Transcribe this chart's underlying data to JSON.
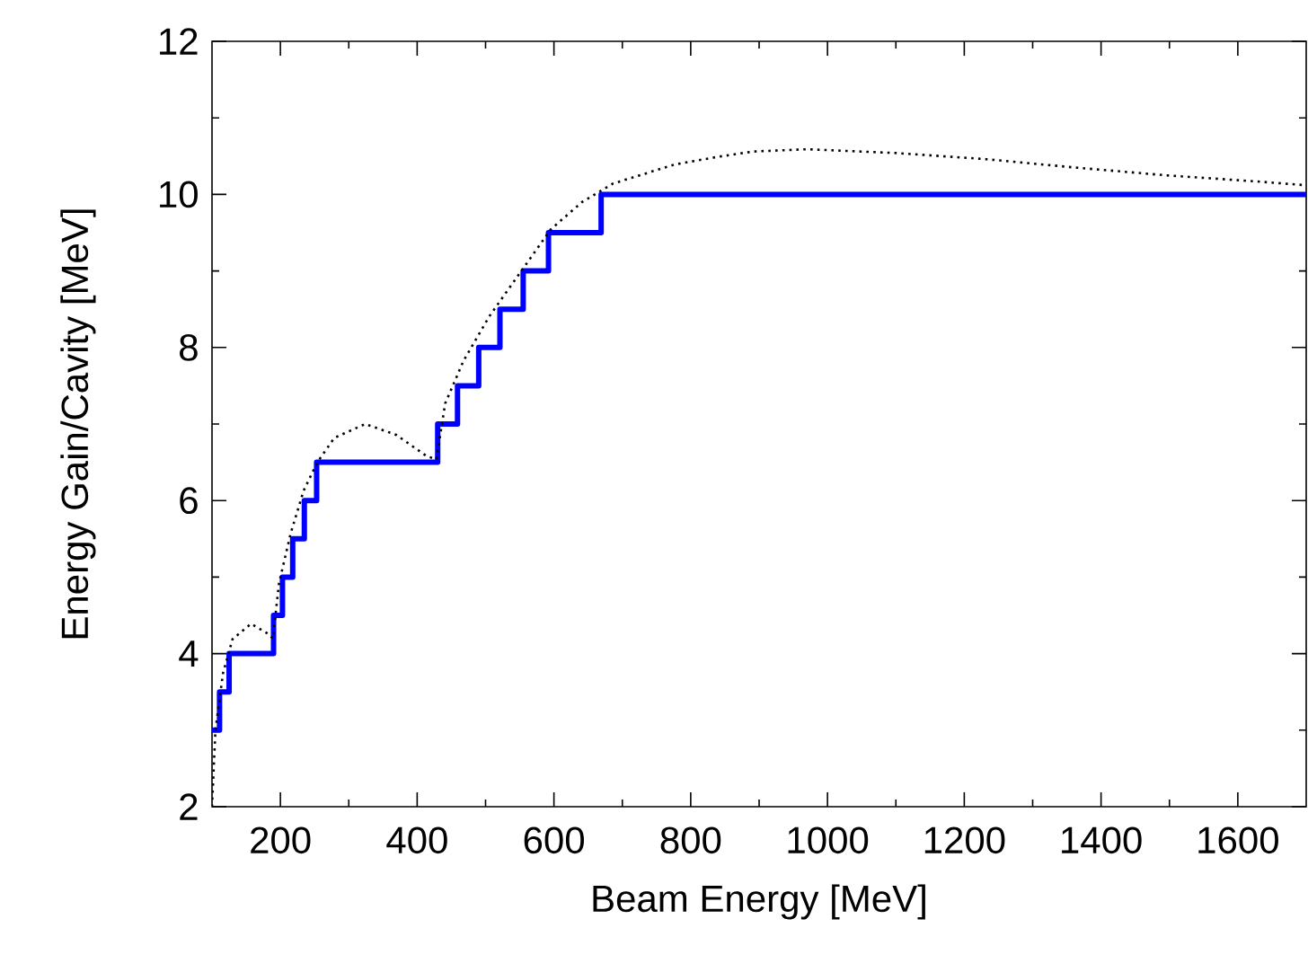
{
  "chart_data": {
    "type": "step",
    "xlabel": "Beam Energy [MeV]",
    "ylabel": "Energy Gain/Cavity [MeV]",
    "xlim": [
      100,
      1700
    ],
    "xticks": [
      200,
      400,
      600,
      800,
      1000,
      1200,
      1400,
      1600
    ],
    "ylim": [
      2,
      12
    ],
    "yticks": [
      2,
      4,
      6,
      8,
      10,
      12
    ],
    "series": [
      {
        "color": "#0000ff",
        "line_style": "solid",
        "x": [
          100,
          111,
          125,
          190,
          203,
          218,
          235,
          253,
          430,
          459,
          490,
          521,
          555,
          592,
          669,
          1700
        ],
        "values": [
          3,
          3.5,
          4,
          4.5,
          5,
          5.5,
          6,
          6.5,
          7,
          7.5,
          8,
          8.5,
          9,
          9.5,
          10,
          10
        ]
      },
      {
        "type": "line",
        "color": "#000000",
        "line_style": "dotted",
        "x": [
          100,
          105,
          116,
          130,
          157,
          180,
          189,
          198,
          215,
          234,
          254,
          279,
          324,
          369,
          414,
          428,
          441,
          468,
          505,
          550,
          595,
          641,
          686,
          776,
          839,
          891,
          970,
          1101,
          1232,
          1363,
          1494,
          1626,
          1699
        ],
        "values": [
          2.0,
          3.0,
          3.74,
          4.19,
          4.39,
          4.27,
          4.2,
          4.92,
          5.57,
          6.13,
          6.5,
          6.82,
          7.0,
          6.86,
          6.58,
          6.54,
          7.27,
          7.83,
          8.4,
          8.97,
          9.54,
          9.9,
          10.14,
          10.39,
          10.49,
          10.56,
          10.59,
          10.54,
          10.46,
          10.35,
          10.25,
          10.17,
          10.12
        ]
      }
    ]
  }
}
